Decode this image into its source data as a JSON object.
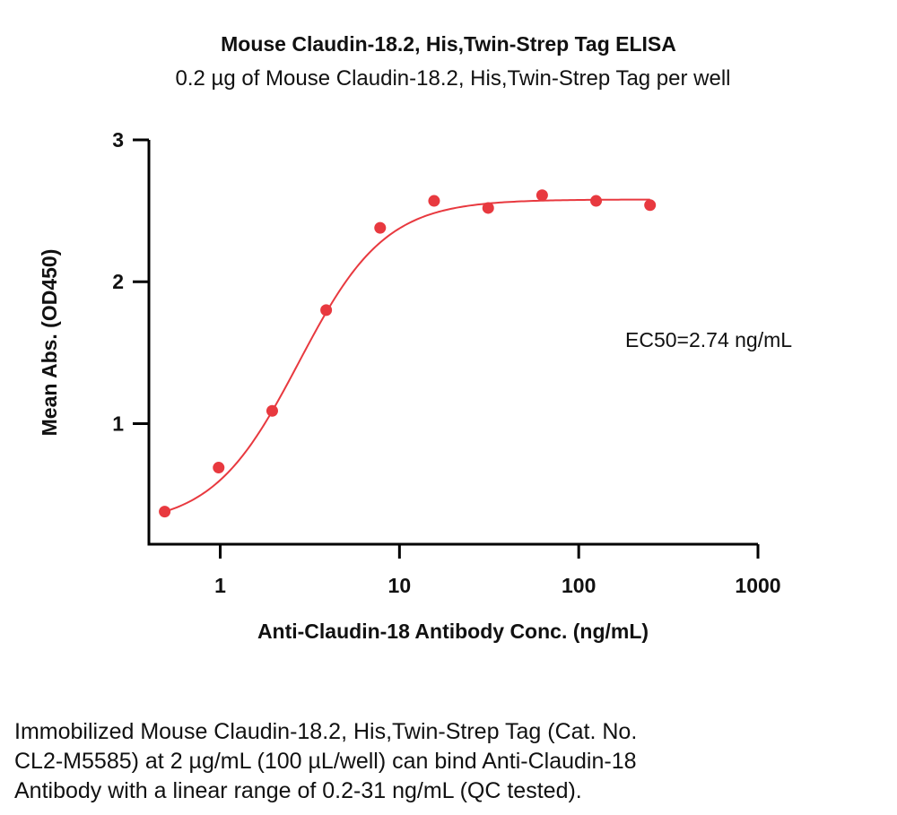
{
  "chart_data": {
    "type": "scatter",
    "title": "Mouse Claudin-18.2, His,Twin-Strep Tag ELISA",
    "subtitle": "0.2 µg of Mouse Claudin-18.2, His,Twin-Strep Tag per well",
    "xlabel": "Anti-Claudin-18 Antibody Conc. (ng/mL)",
    "ylabel": "Mean Abs. (OD450)",
    "x_scale": "log",
    "xlim": [
      0.4,
      1000
    ],
    "ylim": [
      0.15,
      3
    ],
    "x_ticks": [
      1,
      10,
      100,
      1000
    ],
    "x_tick_labels": [
      "1",
      "10",
      "100",
      "1000"
    ],
    "y_ticks": [
      1,
      2,
      3
    ],
    "y_tick_labels": [
      "1",
      "2",
      "3"
    ],
    "grid": false,
    "series": [
      {
        "color": "#e8393f",
        "x": [
          0.49,
          0.98,
          1.95,
          3.9,
          7.8,
          15.6,
          31.25,
          62.5,
          125,
          250
        ],
        "y": [
          0.38,
          0.69,
          1.09,
          1.8,
          2.38,
          2.57,
          2.52,
          2.61,
          2.57,
          2.54
        ]
      }
    ],
    "fit": {
      "model": "4PL",
      "bottom": 0.28,
      "top": 2.58,
      "ec50": 2.74,
      "hill": 1.8,
      "color": "#e8393f"
    },
    "annotation": "EC50=2.74 ng/mL"
  },
  "caption": {
    "line1": "Immobilized Mouse Claudin-18.2, His,Twin-Strep Tag (Cat. No.",
    "line2": "CL2-M5585) at 2 µg/mL (100 µL/well) can bind Anti-Claudin-18",
    "line3": "Antibody with a linear range of 0.2-31 ng/mL (QC tested)."
  }
}
